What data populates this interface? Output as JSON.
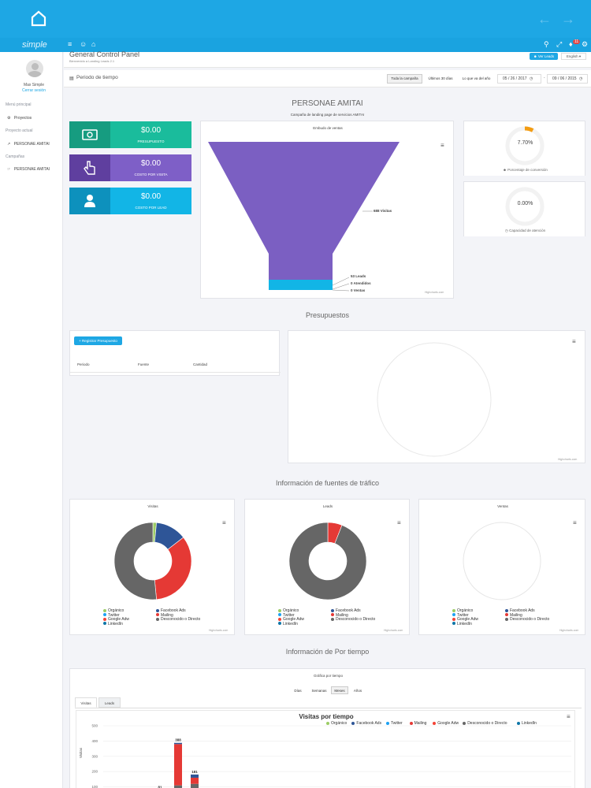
{
  "header": {
    "logo": "simple",
    "notification_count": "11"
  },
  "sidebar": {
    "user_name": "Max Simple",
    "logout": "Cerrar sesión",
    "menu_label": "Menú principal",
    "projects": "Proyectos",
    "current_project_label": "Proyecto actual",
    "current_project": "PERSONAE AMITAI",
    "campaigns_label": "Campañas",
    "campaign": "PERSONAE AMITAI"
  },
  "page": {
    "title": "General Control Panel",
    "subtitle": "Bienvenido a Landing Leads 2.1",
    "view_leads": "Ver Leads",
    "language": "English"
  },
  "period": {
    "label": "Periodo de tiempo",
    "buttons": [
      "Toda la campaña",
      "Últimos 30 días",
      "Lo que va del año"
    ],
    "date_from": "05 / 26 / 2017",
    "date_to": "09 / 06 / 2015"
  },
  "campaign": {
    "title": "PERSONAE AMITAI",
    "subtitle": "Campaña de landing page de servicios AMITAI"
  },
  "metrics": [
    {
      "value": "$0.00",
      "label": "PRESUPUESTO",
      "icon": "money-icon",
      "color": "#1abc9c",
      "dark": "#169c80"
    },
    {
      "value": "$0.00",
      "label": "COSTO POR VISITA",
      "icon": "pointer-hand-icon",
      "color": "#7e5fc7",
      "dark": "#5f3f9f"
    },
    {
      "value": "$0.00",
      "label": "COSTO POR LEAD",
      "icon": "user-icon",
      "color": "#12b5e6",
      "dark": "#0d91bd"
    }
  ],
  "funnel": {
    "title": "Embudo de ventas",
    "labels": [
      "688 Visitas",
      "53 Leads",
      "0 Atendidos",
      "0 Ventas"
    ],
    "credits": "Highcharts.com",
    "colors": {
      "visitas": "#7b5fc2",
      "leads": "#12b5e6"
    }
  },
  "gauges": [
    {
      "value": "7.70%",
      "label": "Porcentaje de conversión",
      "icon": "users-icon",
      "progress": 0.077,
      "color": "#f39c12"
    },
    {
      "value": "0.00%",
      "label": "Capacidad de atención",
      "icon": "clock-icon",
      "progress": 0,
      "color": "#f39c12"
    }
  ],
  "budgets": {
    "title": "Presupuestos",
    "register_button": "+ Registrar Presupuesto",
    "columns": [
      "Periodo",
      "Fuente",
      "Cantidad"
    ],
    "credits": "Highcharts.com"
  },
  "traffic": {
    "title": "Información de fuentes de tráfico",
    "charts": [
      {
        "title": "Visitas",
        "slices": [
          {
            "name": "Orgánico",
            "value": 1.5
          },
          {
            "name": "Facebook Ads",
            "value": 13
          },
          {
            "name": "Mailing",
            "value": 34
          },
          {
            "name": "Desconocido o Directo",
            "value": 51.5
          }
        ]
      },
      {
        "title": "Leads",
        "slices": [
          {
            "name": "Mailing",
            "value": 6
          },
          {
            "name": "Desconocido o Directo",
            "value": 94
          }
        ]
      },
      {
        "title": "Ventas",
        "slices": []
      }
    ],
    "legend": [
      {
        "name": "Orgánico",
        "color": "#9ccc65"
      },
      {
        "name": "Facebook Ads",
        "color": "#2e5597"
      },
      {
        "name": "Twitter",
        "color": "#1da1f2"
      },
      {
        "name": "Mailing",
        "color": "#e53935"
      },
      {
        "name": "Google Adw",
        "color": "#f44336"
      },
      {
        "name": "Desconocido o Directo",
        "color": "#666666"
      },
      {
        "name": "LinkedIn",
        "color": "#0e76a8"
      }
    ],
    "credits": "Highcharts.com"
  },
  "bytime": {
    "title": "Información de Por tiempo",
    "panel_title": "Gráfica por tiempo",
    "granularity": [
      "Días",
      "Semanas",
      "Meses",
      "Años"
    ],
    "active_granularity": "Meses",
    "tabs": [
      "Visitas",
      "Leads"
    ],
    "chart_title": "Visitas por tiempo",
    "legend": [
      "Orgánico",
      "Facebook Ads",
      "Twitter",
      "Mailing",
      "Google Adw",
      "Desconocido o Directo",
      "LinkedIn"
    ],
    "ylabel": "Visitas",
    "yticks": [
      "500",
      "400",
      "300",
      "200",
      "100"
    ]
  },
  "chart_data": {
    "type": "bar",
    "title": "Visitas por tiempo",
    "ylabel": "Visitas",
    "ylim": [
      0,
      500
    ],
    "totals": [
      81,
      388,
      181
    ],
    "series": [
      {
        "name": "Mailing",
        "values": [
          0,
          270,
          40
        ]
      },
      {
        "name": "Desconocido o Directo",
        "values": [
          81,
          110,
          120
        ]
      },
      {
        "name": "Facebook Ads",
        "values": [
          0,
          8,
          21
        ]
      }
    ]
  }
}
